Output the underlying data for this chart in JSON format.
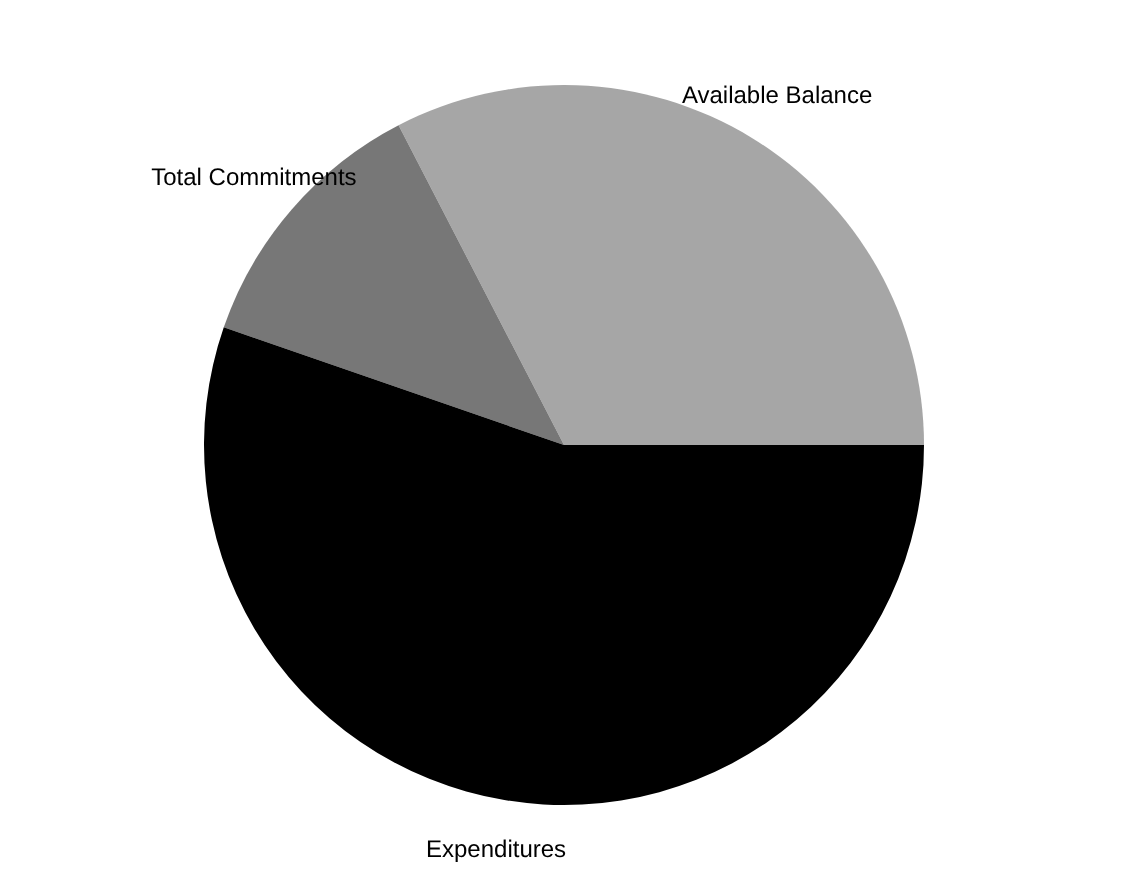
{
  "chart_data": {
    "type": "pie",
    "categories": [
      "Available Balance",
      "Total Commitments",
      "Expenditures"
    ],
    "values": [
      32.6,
      12.1,
      55.3
    ],
    "colors": [
      "#a6a6a6",
      "#777777",
      "#000000"
    ],
    "legend": false
  }
}
